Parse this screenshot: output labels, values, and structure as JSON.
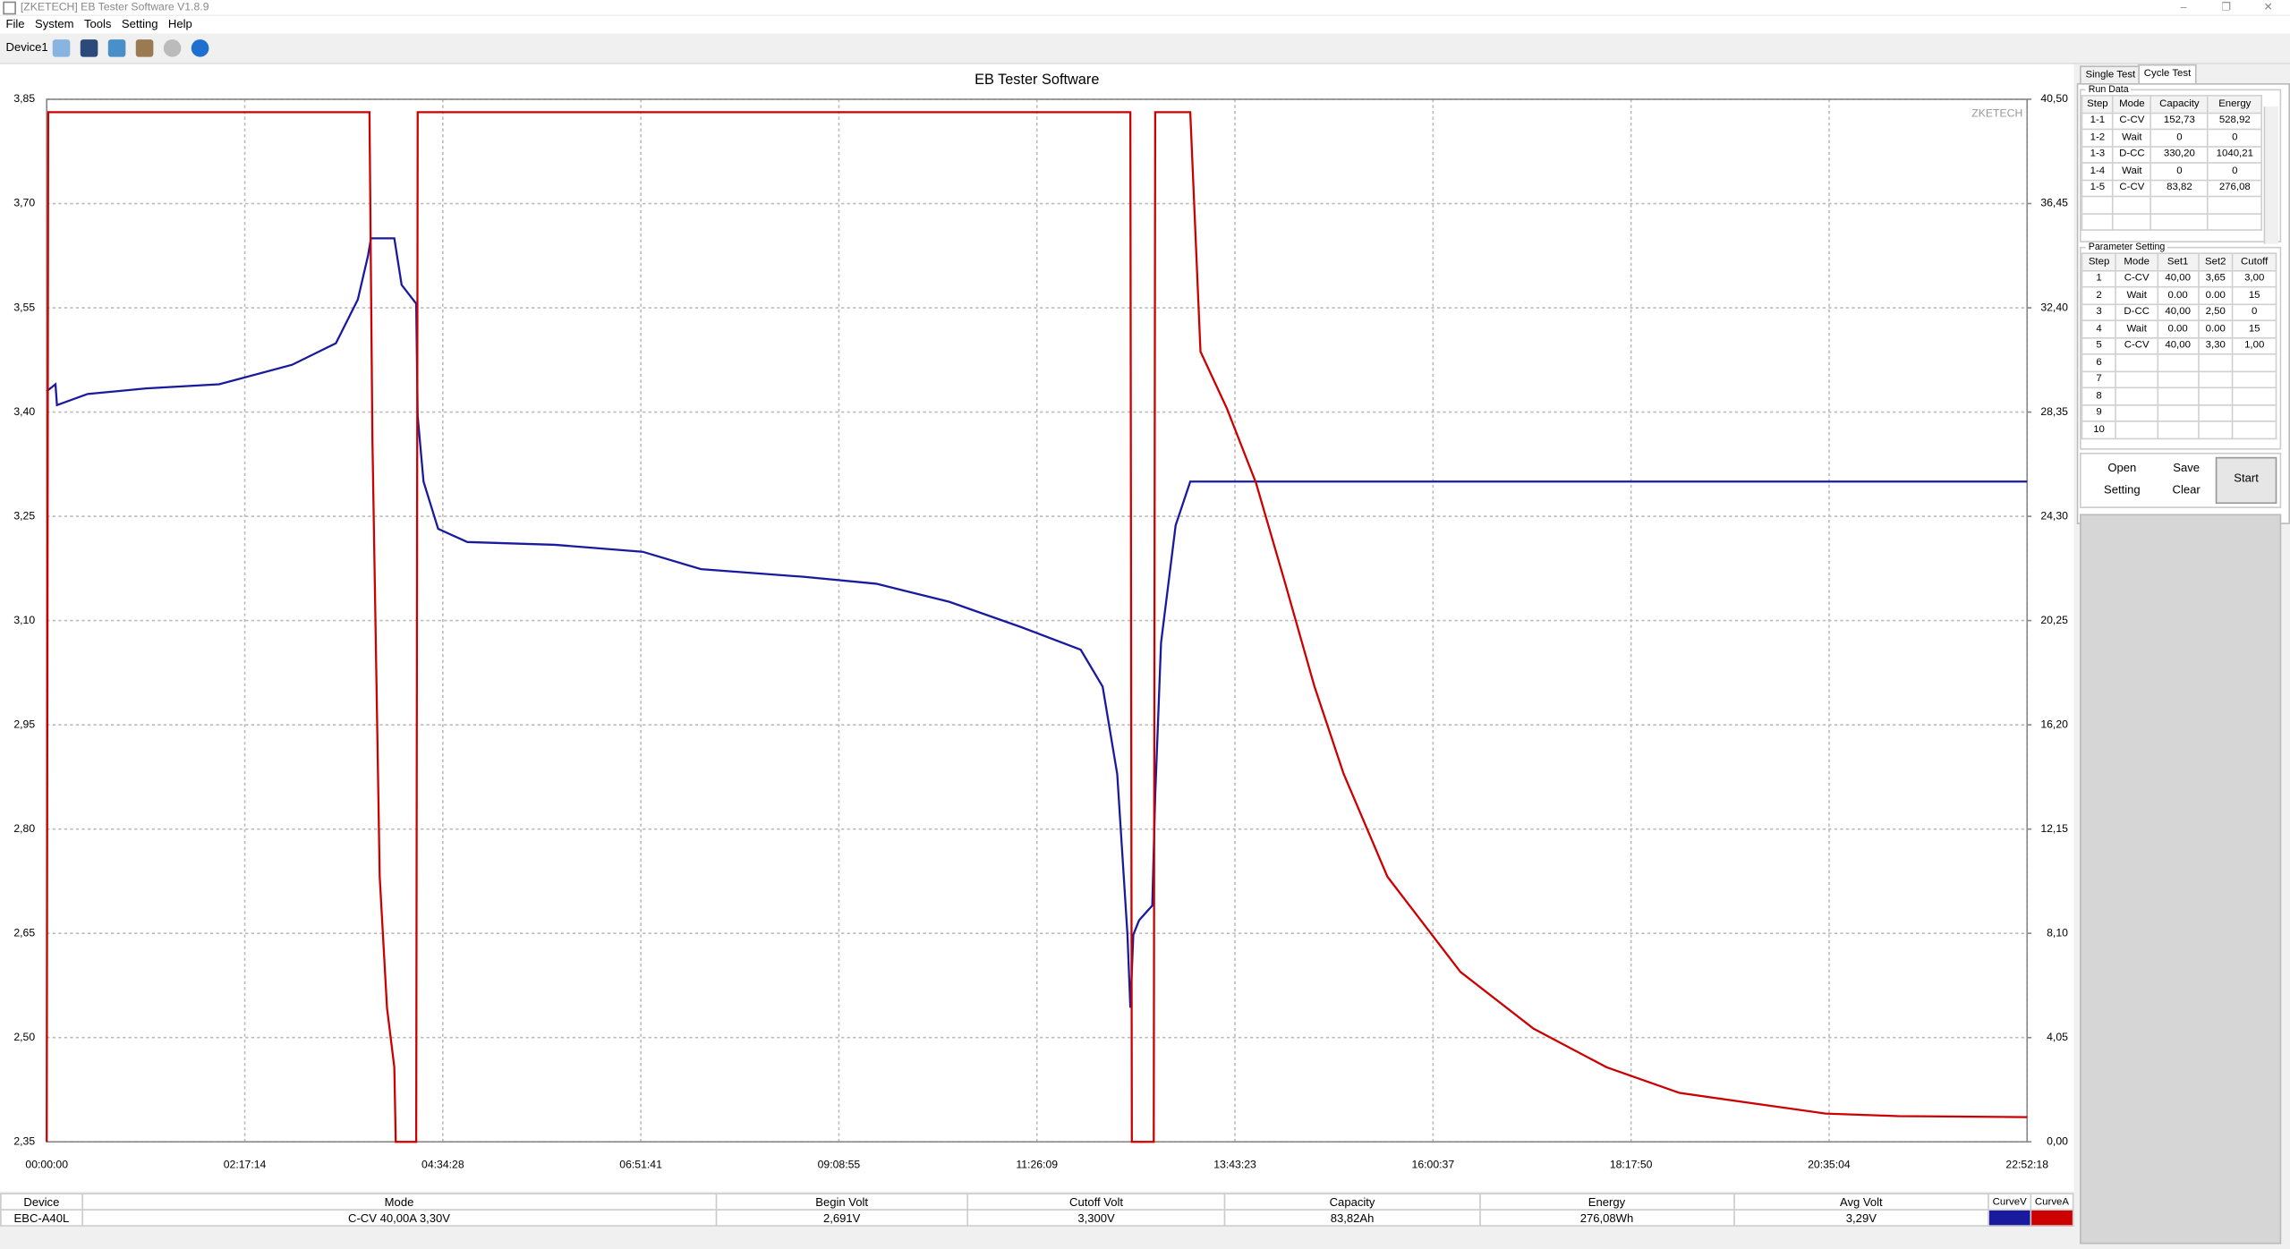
{
  "window": {
    "title": "[ZKETECH] EB Tester Software V1.8.9"
  },
  "menu": [
    "File",
    "System",
    "Tools",
    "Setting",
    "Help"
  ],
  "toolbar": {
    "device": "Device1"
  },
  "chart_data": {
    "type": "line",
    "title": "EB Tester Software",
    "watermark": "ZKETECH",
    "grid": true,
    "xlim": [
      0,
      82338
    ],
    "xticks": [
      {
        "value": 0,
        "label": "00:00:00"
      },
      {
        "value": 8234,
        "label": "02:17:14"
      },
      {
        "value": 16468,
        "label": "04:34:28"
      },
      {
        "value": 24701,
        "label": "06:51:41"
      },
      {
        "value": 32935,
        "label": "09:08:55"
      },
      {
        "value": 41169,
        "label": "11:26:09"
      },
      {
        "value": 49403,
        "label": "13:43:23"
      },
      {
        "value": 57637,
        "label": "16:00:37"
      },
      {
        "value": 65870,
        "label": "18:17:50"
      },
      {
        "value": 74104,
        "label": "20:35:04"
      },
      {
        "value": 82338,
        "label": "22:52:18"
      }
    ],
    "ylim": [
      2.35,
      3.85
    ],
    "yticks": [
      {
        "value": 2.35,
        "label": "2,35"
      },
      {
        "value": 2.5,
        "label": "2,50"
      },
      {
        "value": 2.65,
        "label": "2,65"
      },
      {
        "value": 2.8,
        "label": "2,80"
      },
      {
        "value": 2.95,
        "label": "2,95"
      },
      {
        "value": 3.1,
        "label": "3,10"
      },
      {
        "value": 3.25,
        "label": "3,25"
      },
      {
        "value": 3.4,
        "label": "3,40"
      },
      {
        "value": 3.55,
        "label": "3,55"
      },
      {
        "value": 3.7,
        "label": "3,70"
      },
      {
        "value": 3.85,
        "label": "3,85"
      }
    ],
    "y2lim": [
      0,
      40.5
    ],
    "y2ticks": [
      {
        "value": 0,
        "label": "0,00"
      },
      {
        "value": 4.05,
        "label": "4,05"
      },
      {
        "value": 8.1,
        "label": "8,10"
      },
      {
        "value": 12.15,
        "label": "12,15"
      },
      {
        "value": 16.2,
        "label": "16,20"
      },
      {
        "value": 20.25,
        "label": "20,25"
      },
      {
        "value": 24.3,
        "label": "24,30"
      },
      {
        "value": 28.35,
        "label": "28,35"
      },
      {
        "value": 32.4,
        "label": "32,40"
      },
      {
        "value": 36.45,
        "label": "36,45"
      },
      {
        "value": 40.5,
        "label": "40,50"
      }
    ],
    "series": [
      {
        "name": "CurveV",
        "color": "#1a1a9e",
        "x": [
          0,
          364,
          425,
          1700,
          4129,
          7165,
          10201,
          12023,
          12934,
          13358,
          13480,
          14451,
          14755,
          15362,
          15423,
          15666,
          16273,
          17488,
          21131,
          24774,
          27203,
          31454,
          34490,
          37526,
          40562,
          42990,
          43901,
          44508,
          44933,
          45054,
          45176,
          45419,
          45965,
          46086,
          46329,
          46936,
          47544,
          82338
        ],
        "values": [
          3.43,
          3.44,
          3.41,
          3.426,
          3.434,
          3.44,
          3.468,
          3.499,
          3.562,
          3.625,
          3.65,
          3.65,
          3.583,
          3.556,
          3.394,
          3.3,
          3.232,
          3.213,
          3.209,
          3.199,
          3.174,
          3.163,
          3.153,
          3.127,
          3.09,
          3.058,
          3.005,
          2.879,
          2.648,
          2.543,
          2.648,
          2.669,
          2.69,
          2.848,
          3.068,
          3.237,
          3.3,
          3.3
        ]
      },
      {
        "name": "CurveA",
        "color": "#cc0000",
        "axis": "y2",
        "x": [
          0,
          61,
          13419,
          13541,
          13844,
          14148,
          14451,
          14512,
          15362,
          15423,
          45054,
          45115,
          46026,
          46086,
          47544,
          47969,
          49062,
          50276,
          51491,
          52705,
          53920,
          55741,
          58777,
          61813,
          64849,
          67885,
          70921,
          73957,
          76993,
          82338
        ],
        "values": [
          0,
          40,
          40,
          27.3,
          10.3,
          5.2,
          2.9,
          0,
          0,
          40,
          40,
          0,
          0,
          40,
          40,
          30.7,
          28.5,
          25.6,
          21.7,
          17.7,
          14.3,
          10.3,
          6.6,
          4.4,
          2.9,
          1.9,
          1.5,
          1.1,
          1.0,
          0.96
        ]
      }
    ]
  },
  "tabs": [
    "Single Test",
    "Cycle Test"
  ],
  "run_data": {
    "title": "Run Data",
    "columns": [
      "Step",
      "Mode",
      "Capacity",
      "Energy"
    ],
    "rows": [
      [
        "1-1",
        "C-CV",
        "152,73",
        "528,92"
      ],
      [
        "1-2",
        "Wait",
        "0",
        "0"
      ],
      [
        "1-3",
        "D-CC",
        "330,20",
        "1040,21"
      ],
      [
        "1-4",
        "Wait",
        "0",
        "0"
      ],
      [
        "1-5",
        "C-CV",
        "83,82",
        "276,08"
      ]
    ]
  },
  "parameter_setting": {
    "title": "Parameter Setting",
    "columns": [
      "Step",
      "Mode",
      "Set1",
      "Set2",
      "Cutoff"
    ],
    "rows": [
      [
        "1",
        "C-CV",
        "40,00",
        "3,65",
        "3,00"
      ],
      [
        "2",
        "Wait",
        "0.00",
        "0.00",
        "15"
      ],
      [
        "3",
        "D-CC",
        "40,00",
        "2,50",
        "0"
      ],
      [
        "4",
        "Wait",
        "0.00",
        "0.00",
        "15"
      ],
      [
        "5",
        "C-CV",
        "40,00",
        "3,30",
        "1,00"
      ],
      [
        "6"
      ],
      [
        "7"
      ],
      [
        "8"
      ],
      [
        "9"
      ],
      [
        "10"
      ]
    ]
  },
  "buttons": {
    "open": "Open",
    "save": "Save",
    "start": "Start",
    "setting": "Setting",
    "clear": "Clear"
  },
  "status": {
    "columns": [
      "Device",
      "Mode",
      "Begin Volt",
      "Cutoff Volt",
      "Capacity",
      "Energy",
      "Avg Volt"
    ],
    "values": [
      "EBC-A40L",
      "C-CV  40,00A  3,30V",
      "2,691V",
      "3,300V",
      "83,82Ah",
      "276,08Wh",
      "3,29V"
    ]
  }
}
